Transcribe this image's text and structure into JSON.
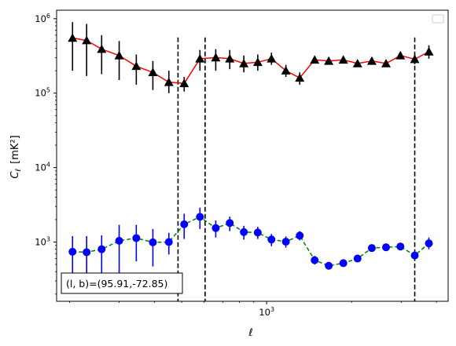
{
  "chart_data": {
    "type": "scatter",
    "title": "",
    "xlabel": "ℓ",
    "ylabel": "C",
    "ylabel_sub": "ℓ",
    "ylabel_unit": "[mK²]",
    "xscale": "log",
    "yscale": "log",
    "xlim": [
      180,
      4400
    ],
    "ylim": [
      160,
      1300000
    ],
    "x_ticks": [
      {
        "value": 1000,
        "base": "10",
        "exp": "3"
      }
    ],
    "y_ticks": [
      {
        "value": 1000,
        "base": "10",
        "exp": "3"
      },
      {
        "value": 10000,
        "base": "10",
        "exp": "4"
      },
      {
        "value": 100000,
        "base": "10",
        "exp": "5"
      },
      {
        "value": 1000000,
        "base": "10",
        "exp": "6"
      }
    ],
    "vlines": [
      485,
      605,
      3350
    ],
    "annotation": "(l, b)=(95.91,-72.85)",
    "legend": "top-right (empty)",
    "series": [
      {
        "marker": "triangle",
        "marker_color": "#000000",
        "line_color": "#ff0000",
        "line_style": "solid",
        "points": [
          {
            "x": 205,
            "y": 550000,
            "lo": 200000,
            "hi": 900000
          },
          {
            "x": 230,
            "y": 510000,
            "lo": 170000,
            "hi": 850000
          },
          {
            "x": 260,
            "y": 390000,
            "lo": 180000,
            "hi": 600000
          },
          {
            "x": 300,
            "y": 320000,
            "lo": 150000,
            "hi": 500000
          },
          {
            "x": 345,
            "y": 230000,
            "lo": 130000,
            "hi": 330000
          },
          {
            "x": 395,
            "y": 190000,
            "lo": 110000,
            "hi": 270000
          },
          {
            "x": 450,
            "y": 140000,
            "lo": 100000,
            "hi": 200000
          },
          {
            "x": 510,
            "y": 135000,
            "lo": 105000,
            "hi": 165000
          },
          {
            "x": 580,
            "y": 290000,
            "lo": 200000,
            "hi": 380000
          },
          {
            "x": 660,
            "y": 300000,
            "lo": 200000,
            "hi": 390000
          },
          {
            "x": 740,
            "y": 290000,
            "lo": 210000,
            "hi": 380000
          },
          {
            "x": 830,
            "y": 250000,
            "lo": 190000,
            "hi": 320000
          },
          {
            "x": 930,
            "y": 260000,
            "lo": 200000,
            "hi": 330000
          },
          {
            "x": 1040,
            "y": 290000,
            "lo": 240000,
            "hi": 350000
          },
          {
            "x": 1170,
            "y": 200000,
            "lo": 165000,
            "hi": 240000
          },
          {
            "x": 1310,
            "y": 160000,
            "lo": 130000,
            "hi": 190000
          },
          {
            "x": 1480,
            "y": 280000,
            "lo": 250000,
            "hi": 310000
          },
          {
            "x": 1660,
            "y": 270000,
            "lo": 245000,
            "hi": 300000
          },
          {
            "x": 1870,
            "y": 280000,
            "lo": 255000,
            "hi": 305000
          },
          {
            "x": 2100,
            "y": 250000,
            "lo": 230000,
            "hi": 275000
          },
          {
            "x": 2360,
            "y": 270000,
            "lo": 250000,
            "hi": 295000
          },
          {
            "x": 2650,
            "y": 250000,
            "lo": 230000,
            "hi": 275000
          },
          {
            "x": 2980,
            "y": 320000,
            "lo": 290000,
            "hi": 355000
          },
          {
            "x": 3350,
            "y": 285000,
            "lo": 245000,
            "hi": 330000
          },
          {
            "x": 3760,
            "y": 360000,
            "lo": 290000,
            "hi": 440000
          }
        ]
      },
      {
        "marker": "circle",
        "marker_color": "#0000ff",
        "line_color": "#008000",
        "line_style": "dashed",
        "points": [
          {
            "x": 205,
            "y": 740,
            "lo": 300,
            "hi": 1200
          },
          {
            "x": 230,
            "y": 730,
            "lo": 300,
            "hi": 1200
          },
          {
            "x": 260,
            "y": 800,
            "lo": 370,
            "hi": 1230
          },
          {
            "x": 300,
            "y": 1040,
            "lo": 380,
            "hi": 1700
          },
          {
            "x": 345,
            "y": 1130,
            "lo": 550,
            "hi": 1700
          },
          {
            "x": 395,
            "y": 990,
            "lo": 470,
            "hi": 1500
          },
          {
            "x": 450,
            "y": 1000,
            "lo": 680,
            "hi": 1330
          },
          {
            "x": 510,
            "y": 1730,
            "lo": 1100,
            "hi": 2400
          },
          {
            "x": 580,
            "y": 2180,
            "lo": 1500,
            "hi": 2900
          },
          {
            "x": 660,
            "y": 1540,
            "lo": 1150,
            "hi": 1950
          },
          {
            "x": 740,
            "y": 1800,
            "lo": 1400,
            "hi": 2200
          },
          {
            "x": 830,
            "y": 1360,
            "lo": 1080,
            "hi": 1650
          },
          {
            "x": 930,
            "y": 1340,
            "lo": 1100,
            "hi": 1600
          },
          {
            "x": 1040,
            "y": 1080,
            "lo": 880,
            "hi": 1280
          },
          {
            "x": 1170,
            "y": 1010,
            "lo": 840,
            "hi": 1190
          },
          {
            "x": 1310,
            "y": 1220,
            "lo": 1050,
            "hi": 1400
          },
          {
            "x": 1480,
            "y": 570,
            "lo": 500,
            "hi": 650
          },
          {
            "x": 1660,
            "y": 480,
            "lo": 430,
            "hi": 540
          },
          {
            "x": 1870,
            "y": 520,
            "lo": 470,
            "hi": 580
          },
          {
            "x": 2100,
            "y": 600,
            "lo": 550,
            "hi": 660
          },
          {
            "x": 2360,
            "y": 830,
            "lo": 760,
            "hi": 900
          },
          {
            "x": 2650,
            "y": 850,
            "lo": 780,
            "hi": 920
          },
          {
            "x": 2980,
            "y": 870,
            "lo": 800,
            "hi": 950
          },
          {
            "x": 3350,
            "y": 660,
            "lo": 580,
            "hi": 760
          },
          {
            "x": 3760,
            "y": 960,
            "lo": 800,
            "hi": 1150
          }
        ]
      }
    ]
  }
}
